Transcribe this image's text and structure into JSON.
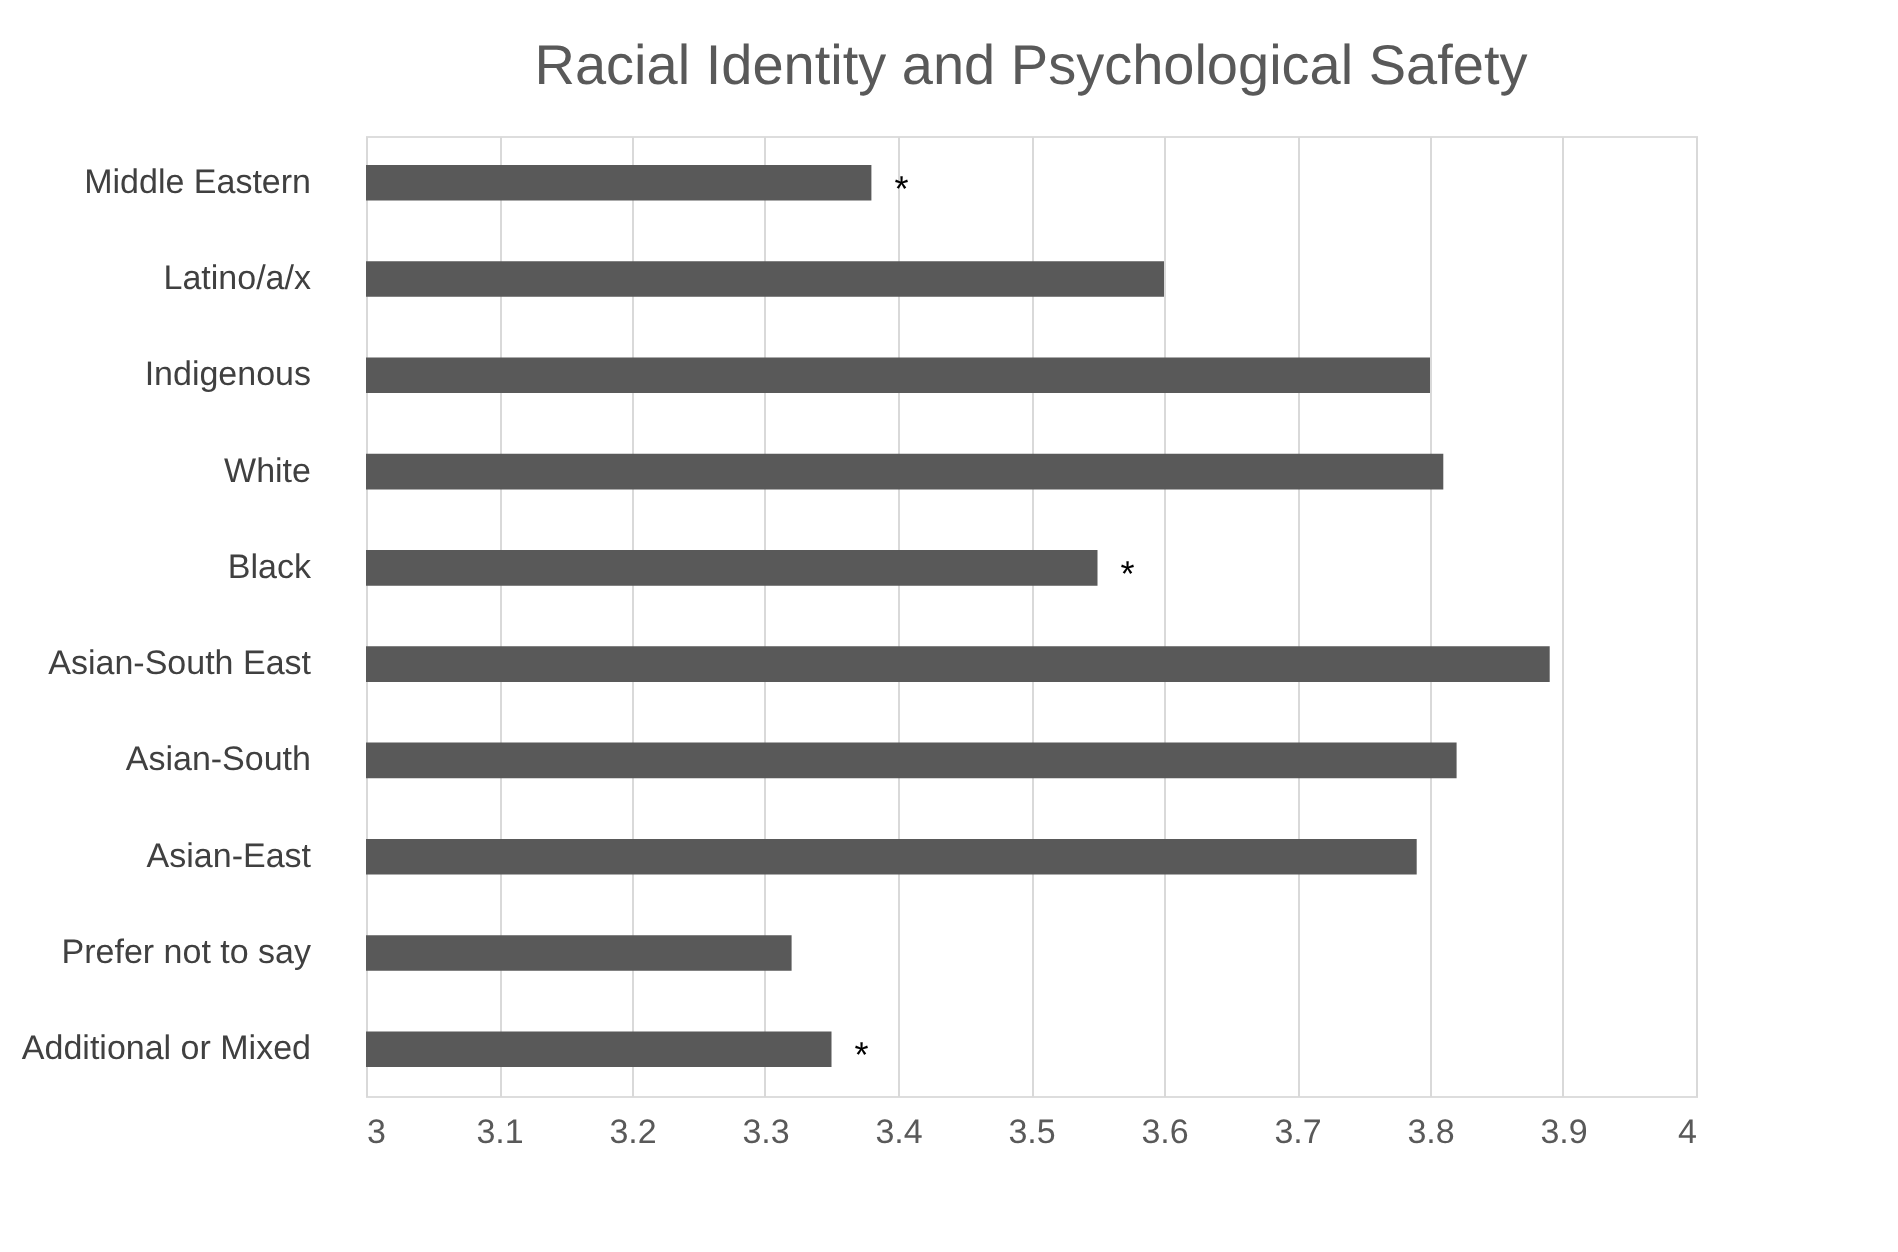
{
  "chart_data": {
    "type": "bar",
    "orientation": "horizontal",
    "title": "Racial Identity and Psychological Safety",
    "categories": [
      "Middle Eastern",
      "Latino/a/x",
      "Indigenous",
      "White",
      "Black",
      "Asian-South East",
      "Asian-South",
      "Asian-East",
      "Prefer not to say",
      "Additional or Mixed"
    ],
    "values": [
      3.38,
      3.6,
      3.8,
      3.81,
      3.55,
      3.89,
      3.82,
      3.79,
      3.32,
      3.35
    ],
    "color": "#595959",
    "xlim": [
      3,
      4
    ],
    "xticks": [
      3,
      3.1,
      3.2,
      3.3,
      3.4,
      3.5,
      3.6,
      3.7,
      3.8,
      3.9,
      4
    ],
    "grid": "x",
    "annotations": [
      {
        "text": "*",
        "x": 3.38,
        "y": "Middle Eastern"
      },
      {
        "text": "*",
        "x": 3.55,
        "y": "Black"
      },
      {
        "text": "*",
        "x": 3.35,
        "y": "Additional or Mixed"
      }
    ]
  }
}
